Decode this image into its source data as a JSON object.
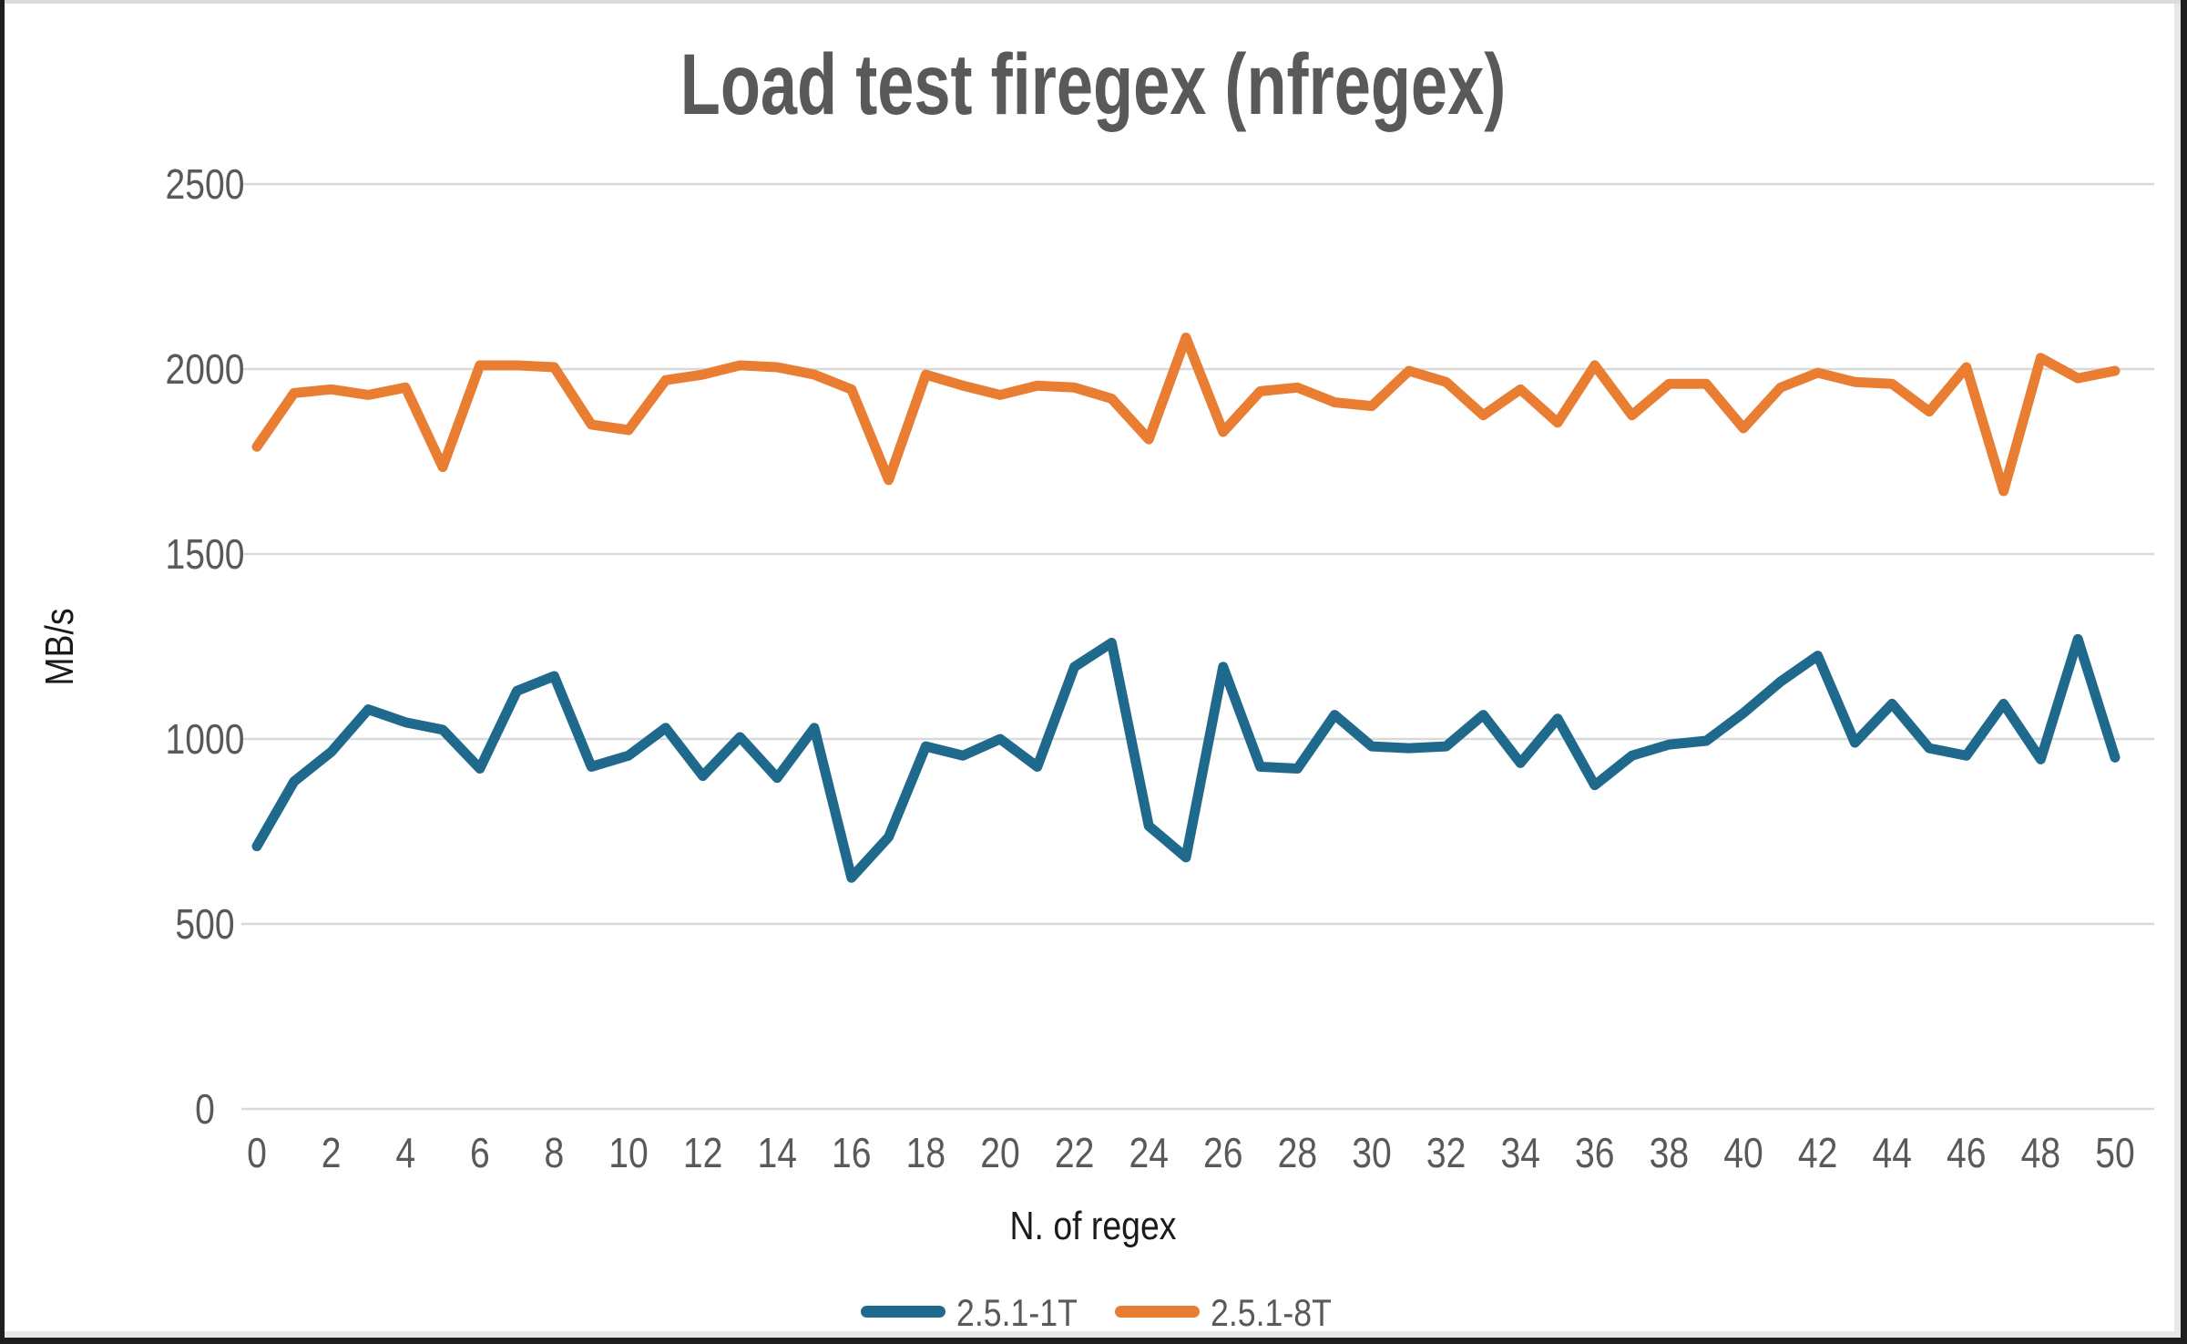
{
  "frame": {
    "background": "#FFFFFF",
    "edge_dark": "#1E1E1E",
    "edge_light": "#DBDBDB",
    "edge_inner": "#E7E7E7"
  },
  "chart_data": {
    "type": "line",
    "title": "Load test firegex (nfregex)",
    "xlabel": "N. of regex",
    "ylabel": "MB/s",
    "x_range": [
      0,
      50
    ],
    "xtick_step": 2,
    "ylim": [
      0,
      2500
    ],
    "ytick_step": 500,
    "grid": "horizontal",
    "gridline_color": "#D9D9D9",
    "legend_position": "bottom",
    "title_color": "#595959",
    "tick_color": "#595959",
    "axis_title_color": "#1A1A1A",
    "legend_text_color": "#595959",
    "series": [
      {
        "name": "2.5.1-1T",
        "color": "#1F6A8C",
        "values": [
          710,
          885,
          965,
          1080,
          1045,
          1025,
          920,
          1130,
          1170,
          925,
          955,
          1030,
          900,
          1005,
          895,
          1030,
          625,
          735,
          980,
          955,
          1000,
          925,
          1195,
          1260,
          765,
          680,
          1195,
          925,
          920,
          1065,
          980,
          975,
          980,
          1065,
          935,
          1055,
          875,
          955,
          985,
          995,
          1070,
          1155,
          1225,
          990,
          1095,
          975,
          955,
          1095,
          945,
          1270,
          950
        ]
      },
      {
        "name": "2.5.1-8T",
        "color": "#E97D32",
        "values": [
          1790,
          1935,
          1945,
          1930,
          1950,
          1735,
          2010,
          2010,
          2005,
          1850,
          1835,
          1970,
          1985,
          2010,
          2005,
          1985,
          1945,
          1700,
          1985,
          1955,
          1930,
          1955,
          1950,
          1920,
          1810,
          2085,
          1830,
          1940,
          1950,
          1910,
          1900,
          1995,
          1965,
          1875,
          1945,
          1855,
          2010,
          1875,
          1960,
          1960,
          1840,
          1950,
          1990,
          1965,
          1960,
          1885,
          2005,
          1670,
          2030,
          1975,
          1995
        ]
      }
    ]
  }
}
